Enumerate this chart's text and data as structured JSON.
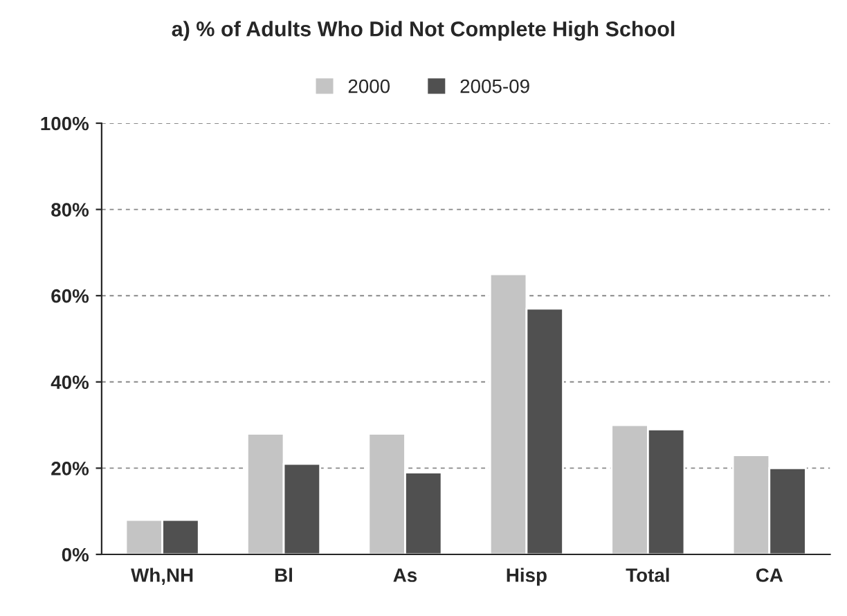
{
  "chart_data": {
    "type": "bar",
    "title": "a) % of Adults Who Did Not Complete High School",
    "categories": [
      "Wh,NH",
      "Bl",
      "As",
      "Hisp",
      "Total",
      "CA"
    ],
    "series": [
      {
        "name": "2000",
        "color": "#c4c4c4",
        "values": [
          8,
          28,
          28,
          65,
          30,
          23
        ]
      },
      {
        "name": "2005-09",
        "color": "#505050",
        "values": [
          8,
          21,
          19,
          57,
          29,
          20
        ]
      }
    ],
    "ylim": [
      0,
      100
    ],
    "yticks": [
      {
        "value": 0,
        "label": "0%"
      },
      {
        "value": 20,
        "label": "20%"
      },
      {
        "value": 40,
        "label": "40%"
      },
      {
        "value": 60,
        "label": "60%"
      },
      {
        "value": 80,
        "label": "80%"
      },
      {
        "value": 100,
        "label": "100%"
      }
    ],
    "grid": "y",
    "legend": "top"
  }
}
